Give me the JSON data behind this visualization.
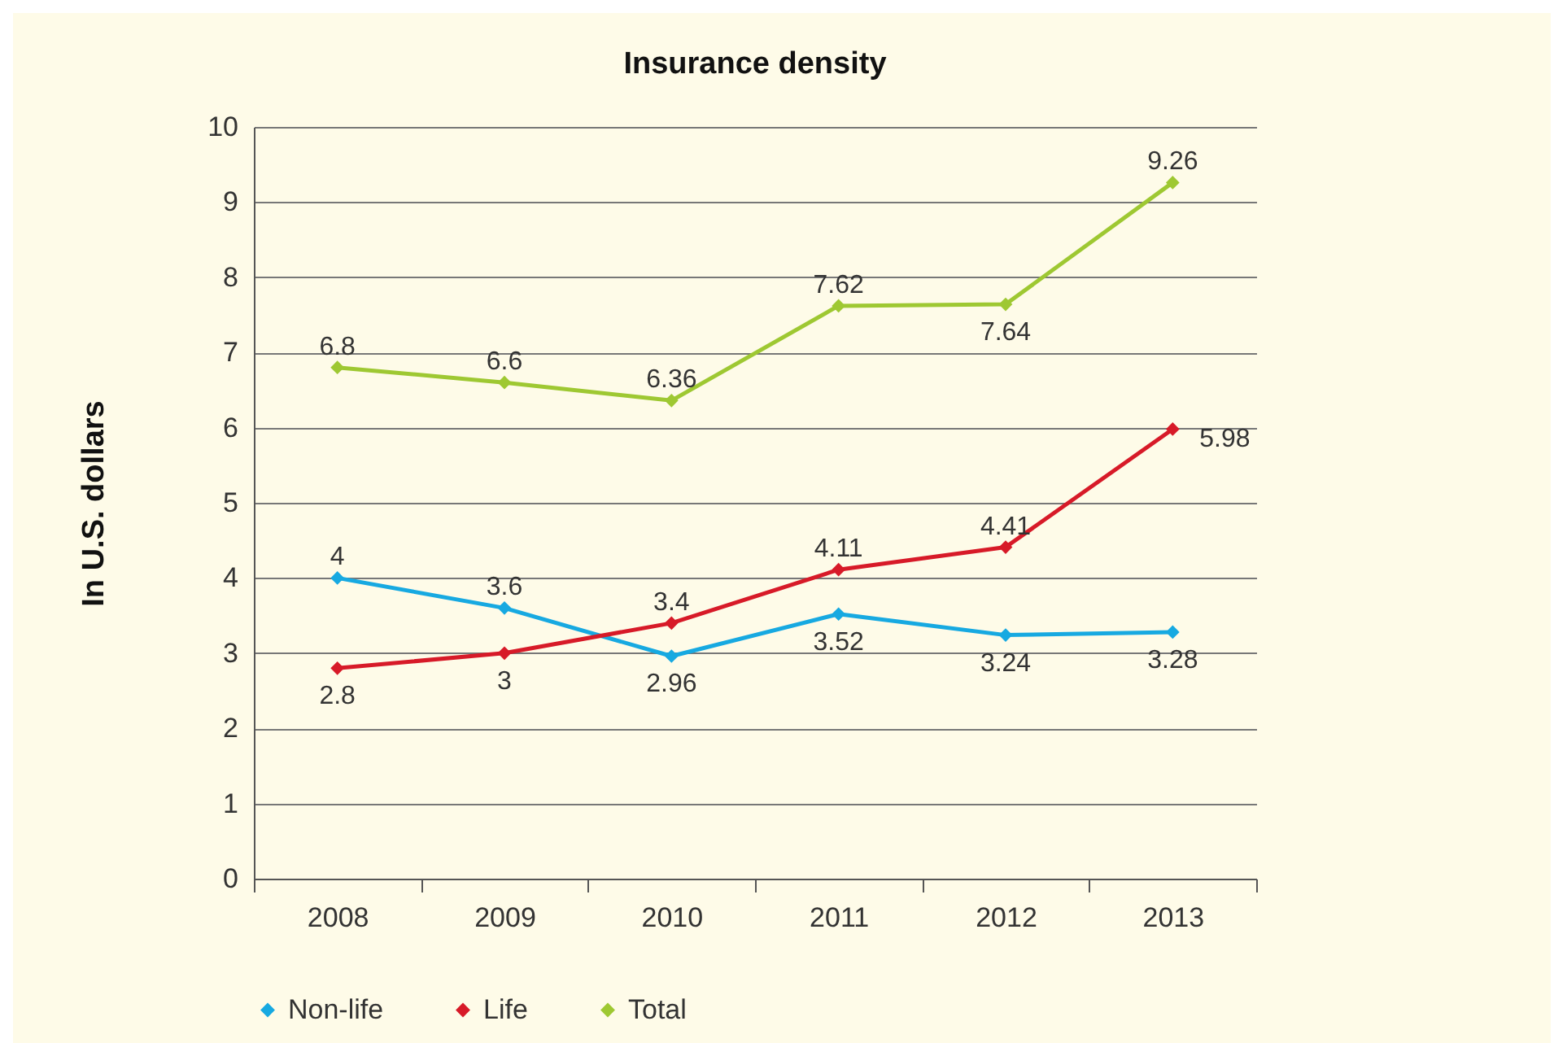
{
  "chart_data": {
    "type": "line",
    "title": "Insurance density",
    "ylabel": "In U.S. dollars",
    "categories": [
      "2008",
      "2009",
      "2010",
      "2011",
      "2012",
      "2013"
    ],
    "series": [
      {
        "name": "Non-life",
        "color": "#17a9e1",
        "values": [
          4,
          3.6,
          2.96,
          3.52,
          3.24,
          3.28
        ]
      },
      {
        "name": "Life",
        "color": "#d71a28",
        "values": [
          2.8,
          3,
          3.4,
          4.11,
          4.41,
          5.98
        ]
      },
      {
        "name": "Total",
        "color": "#9ec832",
        "values": [
          6.8,
          6.6,
          6.36,
          7.62,
          7.64,
          9.26
        ]
      }
    ],
    "ylim": [
      0,
      10
    ],
    "yticks": [
      0,
      1,
      2,
      3,
      4,
      5,
      6,
      7,
      8,
      9,
      10
    ],
    "grid": "y",
    "legend": "bottom",
    "marker": "diamond",
    "line_style": "solid",
    "data_labels": true
  }
}
